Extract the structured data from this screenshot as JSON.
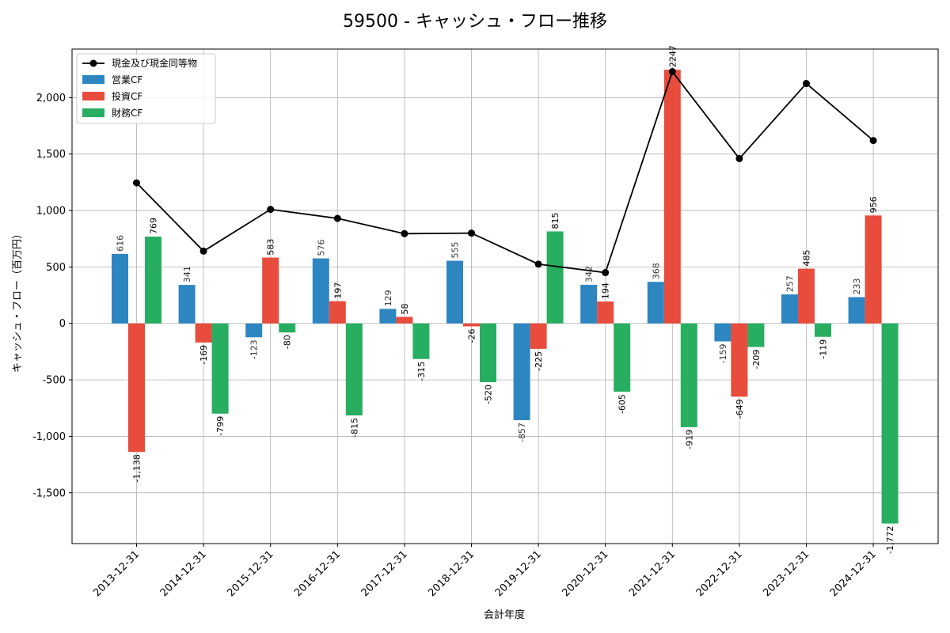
{
  "chart_data": {
    "type": "bar",
    "title": "59500 - キャッシュ・フロー推移",
    "xlabel": "会計年度",
    "ylabel": "キャッシュ・フロー（百万円）",
    "ylim": [
      -1950,
      2430
    ],
    "yticks": [
      -1500,
      -1000,
      -500,
      0,
      500,
      1000,
      1500,
      2000
    ],
    "ytick_labels": [
      "-1,500",
      "-1,000",
      "-500",
      "0",
      "500",
      "1,000",
      "1,500",
      "2,000"
    ],
    "grid": true,
    "legend_position": "top-left",
    "categories": [
      "2013-12-31",
      "2014-12-31",
      "2015-12-31",
      "2016-12-31",
      "2017-12-31",
      "2018-12-31",
      "2019-12-31",
      "2020-12-31",
      "2021-12-31",
      "2022-12-31",
      "2023-12-31",
      "2024-12-31"
    ],
    "series": [
      {
        "name": "営業CF",
        "type": "bar",
        "color": "#2e86c1",
        "values": [
          616,
          341,
          -123,
          576,
          129,
          555,
          -857,
          342,
          368,
          -159,
          257,
          233
        ],
        "labels": [
          "616",
          "341",
          "-123",
          "576",
          "129",
          "555",
          "-857",
          "342",
          "368",
          "-159",
          "257",
          "233"
        ]
      },
      {
        "name": "投資CF",
        "type": "bar",
        "color": "#e74c3c",
        "values": [
          -1138,
          -169,
          583,
          197,
          58,
          -26,
          -225,
          194,
          2247,
          -649,
          485,
          956
        ],
        "labels": [
          "-1,138",
          "-169",
          "583",
          "197",
          "58",
          "-26",
          "-225",
          "194",
          "2247",
          "-649",
          "485",
          "956"
        ]
      },
      {
        "name": "財務CF",
        "type": "bar",
        "color": "#27ae60",
        "values": [
          769,
          -799,
          -80,
          -815,
          -315,
          -520,
          815,
          -605,
          -919,
          -209,
          -119,
          -1772
        ],
        "labels": [
          "769",
          "-799",
          "-80",
          "-815",
          "-315",
          "-520",
          "815",
          "-605",
          "-919",
          "-209",
          "-119",
          "-1,772"
        ]
      },
      {
        "name": "現金及び現金同等物",
        "type": "line",
        "color": "#000000",
        "values": [
          1245,
          640,
          1010,
          930,
          795,
          800,
          525,
          450,
          2230,
          1460,
          2125,
          1620
        ]
      }
    ]
  }
}
